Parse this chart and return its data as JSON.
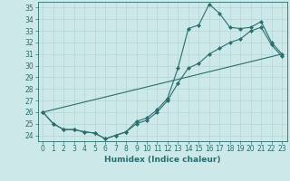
{
  "xlabel": "Humidex (Indice chaleur)",
  "bg_color": "#cce8e8",
  "grid_color": "#aacccc",
  "line_color": "#2a6e6e",
  "xlim": [
    -0.5,
    23.5
  ],
  "ylim": [
    23.5,
    35.5
  ],
  "xticks": [
    0,
    1,
    2,
    3,
    4,
    5,
    6,
    7,
    8,
    9,
    10,
    11,
    12,
    13,
    14,
    15,
    16,
    17,
    18,
    19,
    20,
    21,
    22,
    23
  ],
  "yticks": [
    24,
    25,
    26,
    27,
    28,
    29,
    30,
    31,
    32,
    33,
    34,
    35
  ],
  "series1_x": [
    0,
    1,
    2,
    3,
    4,
    5,
    6,
    7,
    8,
    9,
    10,
    11,
    12,
    13,
    14,
    15,
    16,
    17,
    18,
    19,
    20,
    21,
    22,
    23
  ],
  "series1_y": [
    26.0,
    25.0,
    24.5,
    24.5,
    24.3,
    24.2,
    23.7,
    24.0,
    24.3,
    25.2,
    25.5,
    26.2,
    27.2,
    29.8,
    33.2,
    33.5,
    35.3,
    34.5,
    33.3,
    33.2,
    33.3,
    33.8,
    32.0,
    31.0
  ],
  "series2_x": [
    0,
    1,
    2,
    3,
    4,
    5,
    6,
    7,
    8,
    9,
    10,
    11,
    12,
    13,
    14,
    15,
    16,
    17,
    18,
    19,
    20,
    21,
    22,
    23
  ],
  "series2_y": [
    26.0,
    25.0,
    24.5,
    24.5,
    24.3,
    24.2,
    23.7,
    24.0,
    24.3,
    25.0,
    25.3,
    26.0,
    27.0,
    28.5,
    29.8,
    30.2,
    31.0,
    31.5,
    32.0,
    32.3,
    33.0,
    33.3,
    31.8,
    30.8
  ],
  "series3_x": [
    0,
    23
  ],
  "series3_y": [
    26.0,
    31.0
  ]
}
